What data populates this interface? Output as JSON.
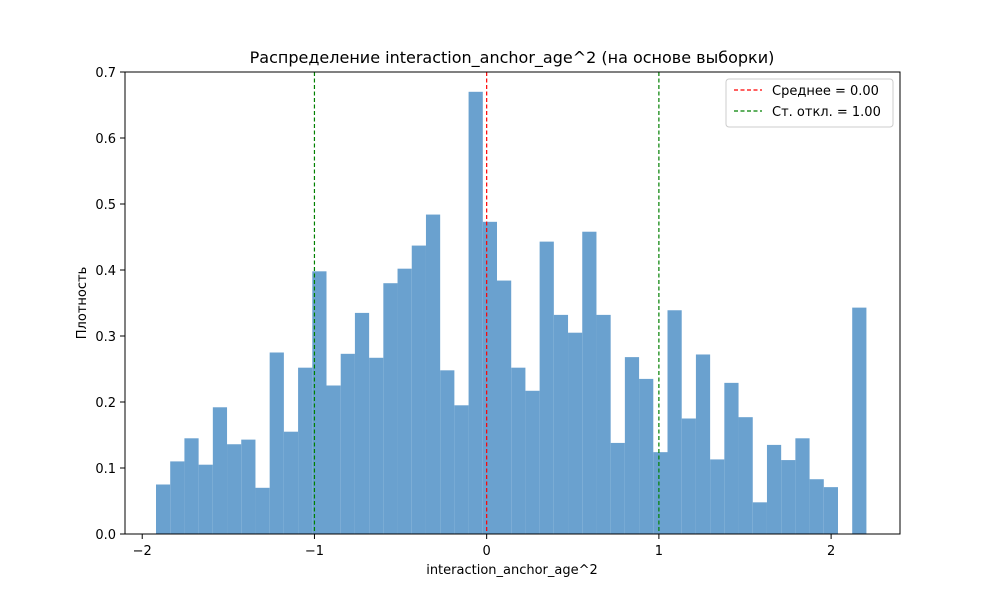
{
  "chart_data": {
    "type": "bar",
    "title": "Распределение interaction_anchor_age^2 (на основе выборки)",
    "xlabel": "interaction_anchor_age^2",
    "ylabel": "Плотность",
    "xlim": [
      -2.1,
      2.4
    ],
    "ylim": [
      0,
      0.7
    ],
    "xticks": [
      -2,
      -1,
      0,
      1,
      2
    ],
    "xtick_labels": [
      "−2",
      "−1",
      "0",
      "1",
      "2"
    ],
    "yticks": [
      0.0,
      0.1,
      0.2,
      0.3,
      0.4,
      0.5,
      0.6,
      0.7
    ],
    "ytick_labels": [
      "0.0",
      "0.1",
      "0.2",
      "0.3",
      "0.4",
      "0.5",
      "0.6",
      "0.7"
    ],
    "bar_color": "#6aa1cf",
    "bin_start": -1.92,
    "bin_width": 0.0825,
    "values": [
      0.075,
      0.11,
      0.145,
      0.105,
      0.192,
      0.136,
      0.143,
      0.07,
      0.275,
      0.155,
      0.252,
      0.398,
      0.225,
      0.273,
      0.335,
      0.267,
      0.38,
      0.402,
      0.437,
      0.484,
      0.248,
      0.195,
      0.67,
      0.473,
      0.384,
      0.252,
      0.217,
      0.443,
      0.332,
      0.305,
      0.458,
      0.332,
      0.138,
      0.268,
      0.235,
      0.124,
      0.339,
      0.175,
      0.272,
      0.113,
      0.229,
      0.177,
      0.048,
      0.135,
      0.112,
      0.145,
      0.083,
      0.071,
      0.0,
      0.343
    ],
    "vlines": [
      {
        "x": 0.0,
        "color": "#ff0000",
        "label": "Среднее = 0.00"
      },
      {
        "x": -1.0,
        "color": "#008000",
        "label": "Ст. откл. = 1.00"
      },
      {
        "x": 1.0,
        "color": "#008000",
        "label": ""
      }
    ],
    "legend": {
      "position": "top-right",
      "entries": [
        {
          "label": "Среднее = 0.00",
          "color": "#ff0000"
        },
        {
          "label": "Ст. откл. = 1.00",
          "color": "#008000"
        }
      ]
    },
    "grid": false
  }
}
